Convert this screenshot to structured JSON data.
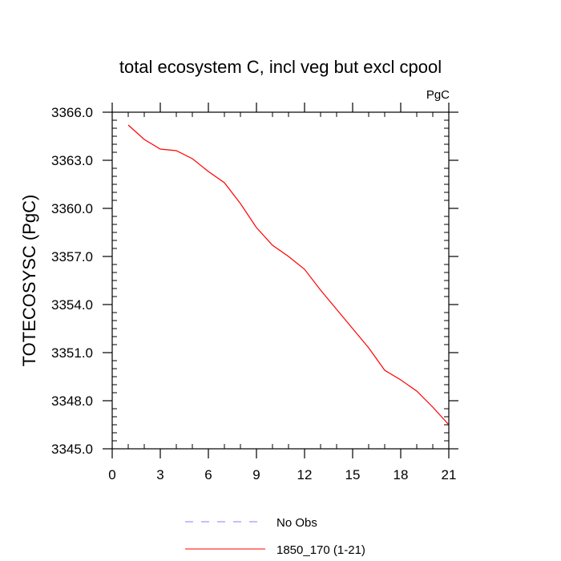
{
  "chart_data": {
    "type": "line",
    "title": "total ecosystem C, incl veg but excl cpool",
    "units_label": "PgC",
    "xlabel": "",
    "ylabel": "TOTECOSYSC  (PgC)",
    "xlim": [
      0,
      21
    ],
    "ylim": [
      3345.0,
      3366.0
    ],
    "x_ticks": [
      0,
      3,
      6,
      9,
      12,
      15,
      18,
      21
    ],
    "x_tick_labels": [
      "0",
      "3",
      "6",
      "9",
      "12",
      "15",
      "18",
      "21"
    ],
    "x_minor_step": 1,
    "y_ticks": [
      3345.0,
      3348.0,
      3351.0,
      3354.0,
      3357.0,
      3360.0,
      3363.0,
      3366.0
    ],
    "y_tick_labels": [
      "3345.0",
      "3348.0",
      "3351.0",
      "3354.0",
      "3357.0",
      "3360.0",
      "3363.0",
      "3366.0"
    ],
    "y_minor_step": 0.5,
    "grid": false,
    "legend_position": "bottom-center",
    "series": [
      {
        "name": "No Obs",
        "color": "#8080ff",
        "style": "dashed",
        "x": [],
        "values": []
      },
      {
        "name": "1850_170 (1-21)",
        "color": "#ff0000",
        "style": "solid",
        "x": [
          1,
          2,
          3,
          4,
          5,
          6,
          7,
          8,
          9,
          10,
          11,
          12,
          13,
          14,
          15,
          16,
          17,
          18,
          19,
          20,
          21
        ],
        "values": [
          3365.2,
          3364.3,
          3363.7,
          3363.6,
          3363.1,
          3362.3,
          3361.6,
          3360.3,
          3358.8,
          3357.7,
          3357.0,
          3356.2,
          3354.9,
          3353.7,
          3352.5,
          3351.3,
          3349.9,
          3349.3,
          3348.6,
          3347.6,
          3346.5
        ]
      }
    ]
  }
}
